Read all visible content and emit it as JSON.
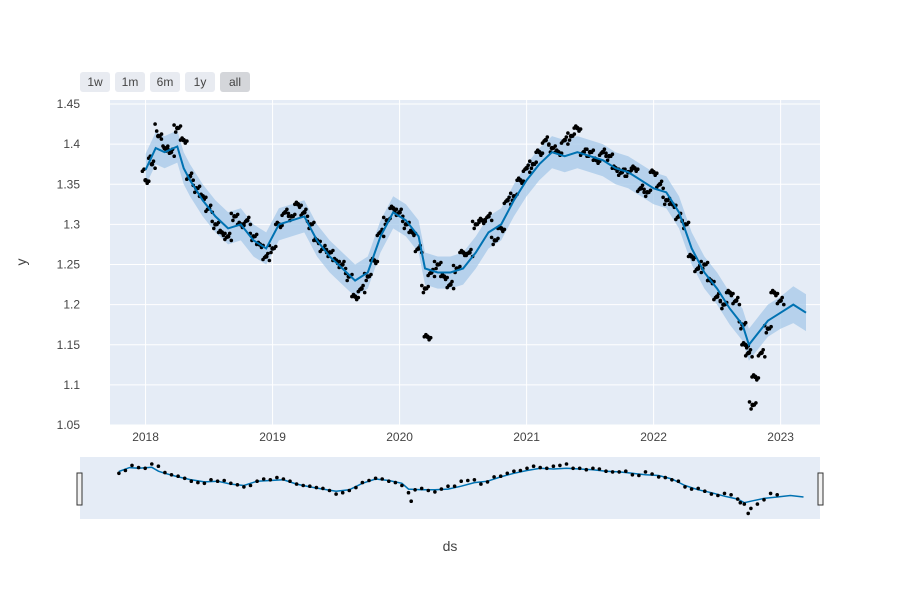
{
  "range_selector": {
    "buttons": [
      {
        "label": "1w",
        "active": false
      },
      {
        "label": "1m",
        "active": false
      },
      {
        "label": "6m",
        "active": false
      },
      {
        "label": "1y",
        "active": false
      },
      {
        "label": "all",
        "active": true
      }
    ]
  },
  "chart_data": {
    "type": "line",
    "title": "",
    "xlabel": "ds",
    "ylabel": "y",
    "xlim": [
      2017.72,
      2023.31
    ],
    "ylim": [
      1.05,
      1.455
    ],
    "x_ticks": [
      {
        "value": 2018,
        "label": "2018"
      },
      {
        "value": 2019,
        "label": "2019"
      },
      {
        "value": 2020,
        "label": "2020"
      },
      {
        "value": 2021,
        "label": "2021"
      },
      {
        "value": 2022,
        "label": "2022"
      },
      {
        "value": 2023,
        "label": "2023"
      }
    ],
    "y_ticks": [
      {
        "value": 1.05,
        "label": "1.05"
      },
      {
        "value": 1.1,
        "label": "1.1"
      },
      {
        "value": 1.15,
        "label": "1.15"
      },
      {
        "value": 1.2,
        "label": "1.2"
      },
      {
        "value": 1.25,
        "label": "1.25"
      },
      {
        "value": 1.3,
        "label": "1.3"
      },
      {
        "value": 1.35,
        "label": "1.35"
      },
      {
        "value": 1.4,
        "label": "1.4"
      },
      {
        "value": 1.45,
        "label": "1.45"
      }
    ],
    "grid": true,
    "legend": "none",
    "colors": {
      "forecast": "#0072B2",
      "band": "#a6c8e8",
      "observed": "#000000",
      "plot_bg": "#e5ecf6"
    },
    "series": [
      {
        "role": "forecast",
        "x": [
          2018.0,
          2018.08,
          2018.15,
          2018.25,
          2018.3,
          2018.35,
          2018.45,
          2018.55,
          2018.65,
          2018.75,
          2018.85,
          2018.95,
          2019.05,
          2019.15,
          2019.25,
          2019.35,
          2019.45,
          2019.55,
          2019.65,
          2019.75,
          2019.85,
          2019.95,
          2020.05,
          2020.15,
          2020.2,
          2020.3,
          2020.4,
          2020.5,
          2020.6,
          2020.7,
          2020.8,
          2020.9,
          2021.0,
          2021.1,
          2021.2,
          2021.3,
          2021.4,
          2021.5,
          2021.6,
          2021.7,
          2021.8,
          2021.9,
          2022.0,
          2022.1,
          2022.2,
          2022.3,
          2022.4,
          2022.5,
          2022.6,
          2022.7,
          2022.75,
          2022.8,
          2022.9,
          2023.0,
          2023.1,
          2023.2
        ],
        "values": [
          1.368,
          1.395,
          1.39,
          1.397,
          1.37,
          1.355,
          1.33,
          1.31,
          1.295,
          1.3,
          1.28,
          1.27,
          1.3,
          1.305,
          1.31,
          1.28,
          1.26,
          1.245,
          1.23,
          1.24,
          1.285,
          1.315,
          1.305,
          1.285,
          1.245,
          1.24,
          1.24,
          1.245,
          1.265,
          1.29,
          1.3,
          1.33,
          1.355,
          1.375,
          1.39,
          1.385,
          1.39,
          1.385,
          1.38,
          1.37,
          1.365,
          1.355,
          1.345,
          1.34,
          1.315,
          1.27,
          1.24,
          1.22,
          1.195,
          1.175,
          1.15,
          1.16,
          1.18,
          1.19,
          1.2,
          1.19
        ]
      },
      {
        "role": "observed",
        "x": [
          2018.0,
          2018.05,
          2018.1,
          2018.15,
          2018.2,
          2018.25,
          2018.3,
          2018.35,
          2018.4,
          2018.45,
          2018.5,
          2018.55,
          2018.6,
          2018.65,
          2018.7,
          2018.75,
          2018.8,
          2018.85,
          2018.9,
          2018.95,
          2019.0,
          2019.05,
          2019.1,
          2019.15,
          2019.2,
          2019.25,
          2019.3,
          2019.35,
          2019.4,
          2019.45,
          2019.5,
          2019.55,
          2019.6,
          2019.65,
          2019.7,
          2019.75,
          2019.8,
          2019.85,
          2019.9,
          2019.95,
          2020.0,
          2020.05,
          2020.1,
          2020.15,
          2020.2,
          2020.22,
          2020.25,
          2020.3,
          2020.35,
          2020.4,
          2020.45,
          2020.5,
          2020.55,
          2020.6,
          2020.65,
          2020.7,
          2020.75,
          2020.8,
          2020.85,
          2020.9,
          2020.95,
          2021.0,
          2021.05,
          2021.1,
          2021.15,
          2021.2,
          2021.25,
          2021.3,
          2021.35,
          2021.4,
          2021.45,
          2021.5,
          2021.55,
          2021.6,
          2021.65,
          2021.7,
          2021.75,
          2021.8,
          2021.85,
          2021.9,
          2021.95,
          2022.0,
          2022.05,
          2022.1,
          2022.15,
          2022.2,
          2022.25,
          2022.3,
          2022.35,
          2022.4,
          2022.45,
          2022.5,
          2022.55,
          2022.6,
          2022.65,
          2022.7,
          2022.72,
          2022.75,
          2022.78,
          2022.8,
          2022.85,
          2022.9,
          2022.95,
          2023.0
        ],
        "values": [
          1.355,
          1.375,
          1.41,
          1.395,
          1.39,
          1.42,
          1.405,
          1.36,
          1.345,
          1.335,
          1.32,
          1.3,
          1.29,
          1.285,
          1.31,
          1.3,
          1.305,
          1.285,
          1.275,
          1.26,
          1.27,
          1.3,
          1.315,
          1.31,
          1.325,
          1.315,
          1.3,
          1.28,
          1.27,
          1.265,
          1.255,
          1.25,
          1.235,
          1.21,
          1.22,
          1.235,
          1.255,
          1.29,
          1.305,
          1.32,
          1.315,
          1.3,
          1.29,
          1.27,
          1.22,
          1.16,
          1.24,
          1.25,
          1.235,
          1.225,
          1.245,
          1.265,
          1.265,
          1.3,
          1.305,
          1.31,
          1.28,
          1.295,
          1.33,
          1.335,
          1.355,
          1.37,
          1.375,
          1.39,
          1.405,
          1.395,
          1.39,
          1.405,
          1.41,
          1.42,
          1.39,
          1.39,
          1.38,
          1.39,
          1.385,
          1.37,
          1.365,
          1.365,
          1.37,
          1.345,
          1.34,
          1.365,
          1.35,
          1.33,
          1.325,
          1.31,
          1.3,
          1.26,
          1.245,
          1.25,
          1.23,
          1.21,
          1.2,
          1.215,
          1.205,
          1.175,
          1.15,
          1.14,
          1.075,
          1.11,
          1.14,
          1.17,
          1.215,
          1.205
        ]
      }
    ],
    "uncertainty_band": {
      "x": [
        2018.0,
        2018.08,
        2018.15,
        2018.25,
        2018.3,
        2018.35,
        2018.45,
        2018.55,
        2018.65,
        2018.75,
        2018.85,
        2018.95,
        2019.05,
        2019.15,
        2019.25,
        2019.35,
        2019.45,
        2019.55,
        2019.65,
        2019.75,
        2019.85,
        2019.95,
        2020.05,
        2020.15,
        2020.2,
        2020.3,
        2020.4,
        2020.5,
        2020.6,
        2020.7,
        2020.8,
        2020.9,
        2021.0,
        2021.1,
        2021.2,
        2021.3,
        2021.4,
        2021.5,
        2021.6,
        2021.7,
        2021.8,
        2021.9,
        2022.0,
        2022.1,
        2022.2,
        2022.3,
        2022.4,
        2022.5,
        2022.6,
        2022.7,
        2022.75,
        2022.8,
        2022.9,
        2023.0,
        2023.1,
        2023.2
      ],
      "lower": [
        1.348,
        1.375,
        1.37,
        1.377,
        1.35,
        1.335,
        1.31,
        1.29,
        1.275,
        1.28,
        1.26,
        1.25,
        1.28,
        1.285,
        1.29,
        1.26,
        1.24,
        1.225,
        1.21,
        1.22,
        1.265,
        1.295,
        1.285,
        1.265,
        1.225,
        1.22,
        1.22,
        1.225,
        1.245,
        1.27,
        1.28,
        1.31,
        1.335,
        1.355,
        1.37,
        1.365,
        1.37,
        1.365,
        1.36,
        1.35,
        1.345,
        1.335,
        1.325,
        1.32,
        1.295,
        1.25,
        1.22,
        1.2,
        1.175,
        1.155,
        1.13,
        1.14,
        1.16,
        1.17,
        1.177,
        1.167
      ],
      "upper": [
        1.388,
        1.415,
        1.41,
        1.417,
        1.39,
        1.375,
        1.35,
        1.33,
        1.315,
        1.32,
        1.3,
        1.29,
        1.32,
        1.325,
        1.33,
        1.3,
        1.28,
        1.265,
        1.25,
        1.26,
        1.305,
        1.335,
        1.325,
        1.305,
        1.265,
        1.26,
        1.26,
        1.265,
        1.285,
        1.31,
        1.32,
        1.35,
        1.375,
        1.395,
        1.41,
        1.405,
        1.41,
        1.405,
        1.4,
        1.39,
        1.385,
        1.375,
        1.365,
        1.36,
        1.335,
        1.29,
        1.26,
        1.24,
        1.215,
        1.195,
        1.17,
        1.18,
        1.2,
        1.21,
        1.223,
        1.213
      ]
    }
  }
}
